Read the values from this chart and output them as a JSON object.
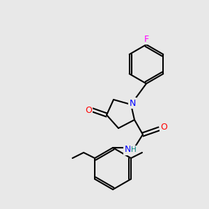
{
  "background_color": "#e8e8e8",
  "bond_color": "#000000",
  "atom_colors": {
    "N": "#0000ff",
    "O": "#ff0000",
    "F": "#ff00ff",
    "H": "#008080",
    "C": "#000000"
  },
  "font_size_atom": 9,
  "font_size_small": 7.5,
  "lw": 1.5
}
